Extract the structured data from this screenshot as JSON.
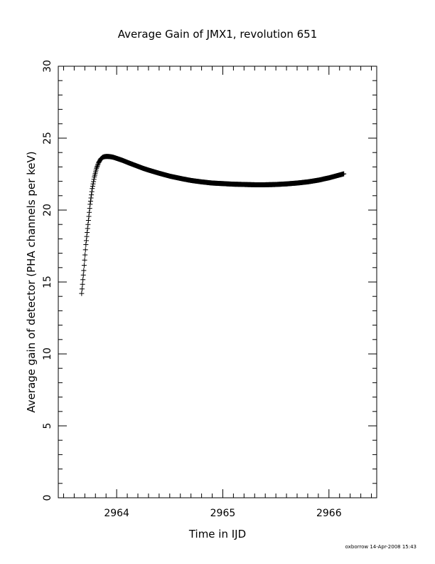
{
  "chart_data": {
    "type": "scatter",
    "title": "Average Gain of JMX1, revolution 651",
    "xlabel": "Time in IJD",
    "ylabel": "Average gain of detector (PHA channels per keV)",
    "xlim": [
      2963.45,
      2966.45
    ],
    "ylim": [
      0,
      30
    ],
    "xticks": [
      2964,
      2965,
      2966
    ],
    "yticks": [
      0,
      5,
      10,
      15,
      20,
      25,
      30
    ],
    "grid": false,
    "marker": "plus",
    "series": [
      {
        "color": "#000000",
        "x": [
          2963.67,
          2963.69,
          2963.71,
          2963.73,
          2963.75,
          2963.77,
          2963.79,
          2963.81,
          2963.83,
          2963.85,
          2963.87,
          2963.89,
          2963.91,
          2963.93,
          2963.95,
          2963.97,
          2963.99,
          2964.05,
          2964.1,
          2964.15,
          2964.2,
          2964.25,
          2964.3,
          2964.4,
          2964.5,
          2964.6,
          2964.7,
          2964.8,
          2964.9,
          2965.0,
          2965.1,
          2965.2,
          2965.3,
          2965.4,
          2965.5,
          2965.6,
          2965.7,
          2965.8,
          2965.9,
          2966.0,
          2966.1,
          2966.14
        ],
        "y": [
          14.2,
          15.8,
          17.6,
          19.0,
          20.4,
          21.5,
          22.3,
          22.9,
          23.3,
          23.55,
          23.68,
          23.72,
          23.73,
          23.72,
          23.7,
          23.67,
          23.62,
          23.47,
          23.32,
          23.18,
          23.04,
          22.9,
          22.78,
          22.56,
          22.36,
          22.2,
          22.06,
          21.96,
          21.88,
          21.84,
          21.8,
          21.78,
          21.76,
          21.76,
          21.78,
          21.82,
          21.88,
          21.96,
          22.08,
          22.24,
          22.44,
          22.52
        ]
      }
    ]
  },
  "footer": {
    "stamp": "oxborrow 14-Apr-2008 15:43"
  }
}
